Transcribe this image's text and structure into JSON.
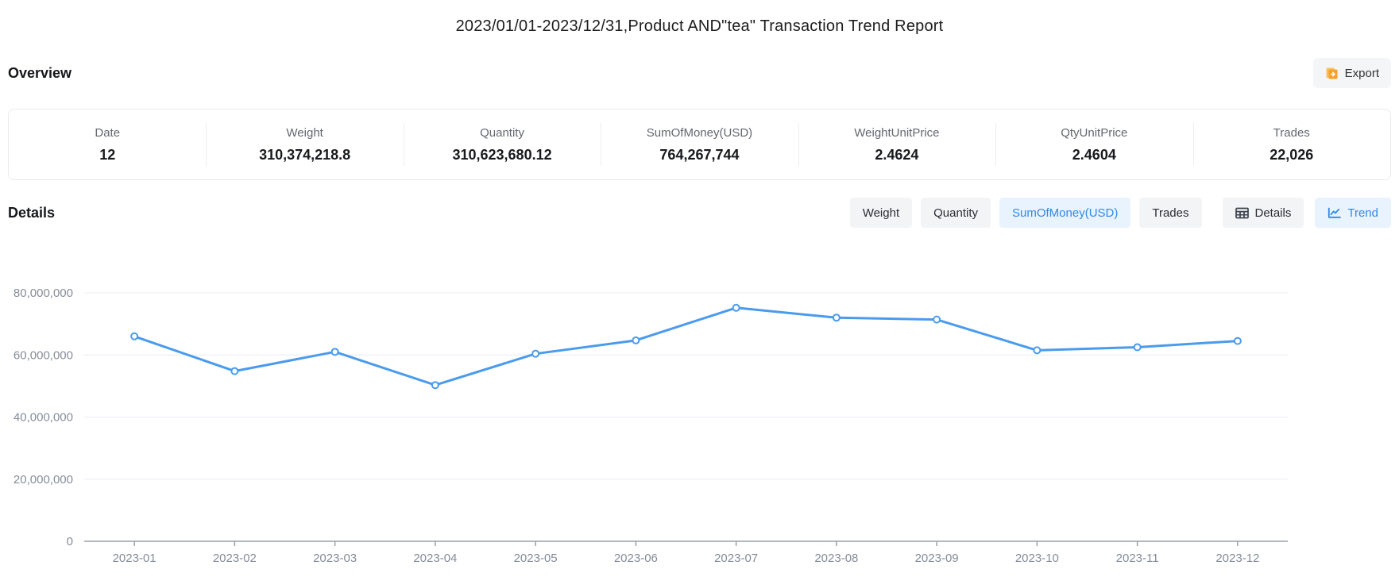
{
  "title": "2023/01/01-2023/12/31,Product AND\"tea\" Transaction Trend Report",
  "overview": {
    "heading": "Overview",
    "export_label": "Export",
    "stats": [
      {
        "label": "Date",
        "value": "12"
      },
      {
        "label": "Weight",
        "value": "310,374,218.8"
      },
      {
        "label": "Quantity",
        "value": "310,623,680.12"
      },
      {
        "label": "SumOfMoney(USD)",
        "value": "764,267,744"
      },
      {
        "label": "WeightUnitPrice",
        "value": "2.4624"
      },
      {
        "label": "QtyUnitPrice",
        "value": "2.4604"
      },
      {
        "label": "Trades",
        "value": "22,026"
      }
    ]
  },
  "details": {
    "heading": "Details",
    "metric_tabs": [
      {
        "label": "Weight",
        "active": false
      },
      {
        "label": "Quantity",
        "active": false
      },
      {
        "label": "SumOfMoney(USD)",
        "active": true
      },
      {
        "label": "Trades",
        "active": false
      }
    ],
    "view_tabs": [
      {
        "label": "Details",
        "icon": "table-icon",
        "active": false
      },
      {
        "label": "Trend",
        "icon": "trend-icon",
        "active": true
      }
    ]
  },
  "colors": {
    "accent_blue": "#3089e8",
    "active_tab_bg": "#e9f3fe",
    "tab_bg": "#f3f4f6",
    "line_blue": "#4a9bee",
    "export_icon_orange": "#f6a12b",
    "export_icon_light_orange": "#fbc15c",
    "grid_line": "#e9ecf2",
    "axis_line": "#9aa0aa",
    "axis_label": "#858c99"
  },
  "chart_data": {
    "type": "line",
    "title": "SumOfMoney(USD) monthly trend",
    "x": [
      "2023-01",
      "2023-02",
      "2023-03",
      "2023-04",
      "2023-05",
      "2023-06",
      "2023-07",
      "2023-08",
      "2023-09",
      "2023-10",
      "2023-11",
      "2023-12"
    ],
    "series": [
      {
        "name": "SumOfMoney(USD)",
        "values": [
          66000000,
          54800000,
          61000000,
          50300000,
          60400000,
          64700000,
          75200000,
          72000000,
          71400000,
          61500000,
          62500000,
          64500000
        ]
      }
    ],
    "xlabel": "",
    "ylabel": "",
    "ylim": [
      0,
      80000000
    ],
    "y_ticks": [
      0,
      20000000,
      40000000,
      60000000,
      80000000
    ],
    "y_tick_labels": [
      "0",
      "20,000,000",
      "40,000,000",
      "60,000,000",
      "80,000,000"
    ],
    "grid": true,
    "legend": false
  }
}
